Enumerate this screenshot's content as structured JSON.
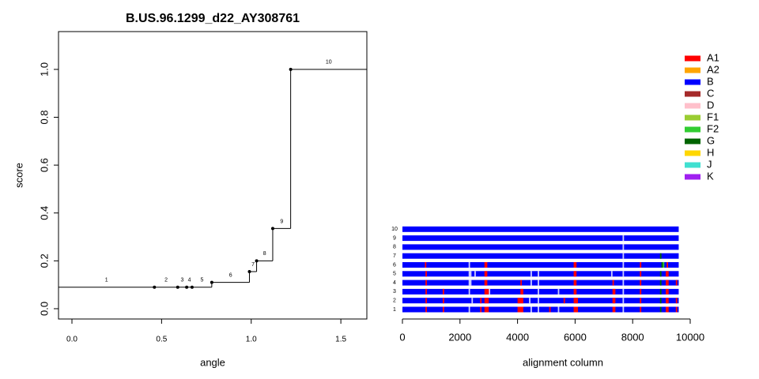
{
  "chart_data": [
    {
      "type": "step",
      "title": "B.US.96.1299_d22_AY308761",
      "x_label": "angle",
      "y_label": "score",
      "labels": [
        "1",
        "2",
        "3",
        "4",
        "5",
        "6",
        "7",
        "8",
        "9",
        "10"
      ],
      "values": [
        0.09,
        0.09,
        0.09,
        0.09,
        0.09,
        0.11,
        0.155,
        0.2,
        0.335,
        1.0
      ],
      "x_end": [
        0.46,
        0.59,
        0.64,
        0.67,
        0.78,
        0.99,
        1.03,
        1.12,
        1.22,
        null
      ],
      "xlim": [
        -0.075,
        1.645
      ],
      "ylim": [
        -0.043,
        1.158
      ],
      "xticks": [
        {
          "value": 0,
          "label": "0.0"
        },
        {
          "value": 0.5,
          "label": "0.5"
        },
        {
          "value": 1,
          "label": "1.0"
        },
        {
          "value": 1.5,
          "label": "1.5"
        }
      ],
      "yticks": [
        {
          "value": 0,
          "label": "0.0"
        },
        {
          "value": 0.2,
          "label": "0.2"
        },
        {
          "value": 0.4,
          "label": "0.4"
        },
        {
          "value": 0.6,
          "label": "0.6"
        },
        {
          "value": 0.8,
          "label": "0.8"
        },
        {
          "value": 1,
          "label": "1.0"
        }
      ],
      "color": "#000000"
    },
    {
      "type": "alignment",
      "x_label": "alignment column",
      "base_subtype": "B",
      "xlim": [
        0,
        10000
      ],
      "xticks": [
        0,
        2000,
        4000,
        6000,
        8000,
        10000
      ],
      "subtypes": [
        {
          "name": "A1",
          "color": "#ff0000"
        },
        {
          "name": "A2",
          "color": "#ffa500"
        },
        {
          "name": "B",
          "color": "#0000ff"
        },
        {
          "name": "C",
          "color": "#a52a2a"
        },
        {
          "name": "D",
          "color": "#ffc0cb"
        },
        {
          "name": "F1",
          "color": "#9acd32"
        },
        {
          "name": "F2",
          "color": "#32cd32"
        },
        {
          "name": "G",
          "color": "#006400"
        },
        {
          "name": "H",
          "color": "#ffd700"
        },
        {
          "name": "J",
          "color": "#40e0d0"
        },
        {
          "name": "K",
          "color": "#a020f0"
        }
      ],
      "rows": [
        {
          "name": "1",
          "length": 9600,
          "segments": [
            {
              "subtype": "A1",
              "start": 800,
              "end": 850
            },
            {
              "subtype": "A1",
              "start": 1400,
              "end": 1450
            },
            {
              "subtype": "A1",
              "start": 2700,
              "end": 2750
            },
            {
              "subtype": "A1",
              "start": 2850,
              "end": 3000
            },
            {
              "subtype": "A1",
              "start": 4000,
              "end": 4200
            },
            {
              "subtype": "A1",
              "start": 5100,
              "end": 5150
            },
            {
              "subtype": "A1",
              "start": 5950,
              "end": 6100
            },
            {
              "subtype": "A1",
              "start": 7300,
              "end": 7400
            },
            {
              "subtype": "A1",
              "start": 8250,
              "end": 8300
            },
            {
              "subtype": "G",
              "start": 8950,
              "end": 9000
            },
            {
              "subtype": "A1",
              "start": 9150,
              "end": 9250
            },
            {
              "subtype": "A1",
              "start": 9500,
              "end": 9550
            }
          ],
          "gaps": [
            [
              2300,
              2350
            ],
            [
              4450,
              4500
            ],
            [
              4700,
              4750
            ],
            [
              5400,
              5450
            ],
            [
              7650,
              7700
            ]
          ]
        },
        {
          "name": "2",
          "length": 9600,
          "segments": [
            {
              "subtype": "A1",
              "start": 800,
              "end": 850
            },
            {
              "subtype": "A1",
              "start": 1400,
              "end": 1450
            },
            {
              "subtype": "A1",
              "start": 2700,
              "end": 2750
            },
            {
              "subtype": "A1",
              "start": 2850,
              "end": 3000
            },
            {
              "subtype": "A1",
              "start": 4000,
              "end": 4200
            },
            {
              "subtype": "A1",
              "start": 5600,
              "end": 5650
            },
            {
              "subtype": "A1",
              "start": 5950,
              "end": 6100
            },
            {
              "subtype": "A1",
              "start": 7300,
              "end": 7400
            },
            {
              "subtype": "A1",
              "start": 8250,
              "end": 8300
            },
            {
              "subtype": "G",
              "start": 8950,
              "end": 9000
            },
            {
              "subtype": "A1",
              "start": 9150,
              "end": 9250
            },
            {
              "subtype": "A1",
              "start": 9500,
              "end": 9550
            }
          ],
          "gaps": [
            [
              2400,
              2450
            ],
            [
              4400,
              4450
            ],
            [
              4700,
              4750
            ],
            [
              7650,
              7700
            ]
          ]
        },
        {
          "name": "3",
          "length": 9600,
          "segments": [
            {
              "subtype": "A1",
              "start": 800,
              "end": 850
            },
            {
              "subtype": "A1",
              "start": 1400,
              "end": 1450
            },
            {
              "subtype": "A1",
              "start": 2850,
              "end": 3000
            },
            {
              "subtype": "A1",
              "start": 4100,
              "end": 4200
            },
            {
              "subtype": "A1",
              "start": 5950,
              "end": 6050
            },
            {
              "subtype": "A1",
              "start": 7300,
              "end": 7400
            },
            {
              "subtype": "A1",
              "start": 8250,
              "end": 8300
            },
            {
              "subtype": "G",
              "start": 8950,
              "end": 9000
            },
            {
              "subtype": "A1",
              "start": 9150,
              "end": 9250
            }
          ],
          "gaps": [
            [
              2300,
              2350
            ],
            [
              3000,
              3050
            ],
            [
              4700,
              4750
            ],
            [
              5400,
              5450
            ],
            [
              7650,
              7700
            ]
          ]
        },
        {
          "name": "4",
          "length": 9600,
          "segments": [
            {
              "subtype": "A1",
              "start": 800,
              "end": 850
            },
            {
              "subtype": "A1",
              "start": 2850,
              "end": 2950
            },
            {
              "subtype": "A1",
              "start": 4100,
              "end": 4150
            },
            {
              "subtype": "A1",
              "start": 5950,
              "end": 6050
            },
            {
              "subtype": "A1",
              "start": 7300,
              "end": 7350
            },
            {
              "subtype": "A1",
              "start": 8250,
              "end": 8300
            },
            {
              "subtype": "G",
              "start": 8950,
              "end": 9000
            },
            {
              "subtype": "A1",
              "start": 9150,
              "end": 9250
            },
            {
              "subtype": "A1",
              "start": 9500,
              "end": 9550
            }
          ],
          "gaps": [
            [
              2300,
              2400
            ],
            [
              4450,
              4500
            ],
            [
              4700,
              4750
            ],
            [
              7650,
              7700
            ]
          ]
        },
        {
          "name": "5",
          "length": 9600,
          "segments": [
            {
              "subtype": "A1",
              "start": 800,
              "end": 850
            },
            {
              "subtype": "A1",
              "start": 2850,
              "end": 2950
            },
            {
              "subtype": "A1",
              "start": 5950,
              "end": 6050
            },
            {
              "subtype": "A1",
              "start": 8250,
              "end": 8300
            },
            {
              "subtype": "G",
              "start": 8950,
              "end": 9000
            },
            {
              "subtype": "A1",
              "start": 9150,
              "end": 9250
            }
          ],
          "gaps": [
            [
              2300,
              2400
            ],
            [
              2500,
              2550
            ],
            [
              4450,
              4500
            ],
            [
              4700,
              4750
            ],
            [
              7250,
              7300
            ],
            [
              7650,
              7700
            ]
          ]
        },
        {
          "name": "6",
          "length": 9600,
          "segments": [
            {
              "subtype": "A1",
              "start": 780,
              "end": 830
            },
            {
              "subtype": "A1",
              "start": 2850,
              "end": 2950
            },
            {
              "subtype": "A1",
              "start": 5950,
              "end": 6050
            },
            {
              "subtype": "A1",
              "start": 8250,
              "end": 8300
            },
            {
              "subtype": "G",
              "start": 9000,
              "end": 9050
            },
            {
              "subtype": "F2",
              "start": 9050,
              "end": 9100
            },
            {
              "subtype": "A1",
              "start": 9180,
              "end": 9230
            }
          ],
          "gaps": [
            [
              2300,
              2350
            ],
            [
              7650,
              7700
            ]
          ]
        },
        {
          "name": "7",
          "length": 9600,
          "segments": [
            {
              "subtype": "G",
              "start": 8950,
              "end": 9000
            }
          ],
          "gaps": [
            [
              7650,
              7700
            ]
          ]
        },
        {
          "name": "8",
          "length": 9600,
          "segments": [],
          "gaps": [
            [
              7650,
              7700
            ]
          ]
        },
        {
          "name": "9",
          "length": 9600,
          "segments": [],
          "gaps": [
            [
              7650,
              7700
            ]
          ]
        },
        {
          "name": "10",
          "length": 9600,
          "segments": [],
          "gaps": []
        }
      ]
    }
  ]
}
